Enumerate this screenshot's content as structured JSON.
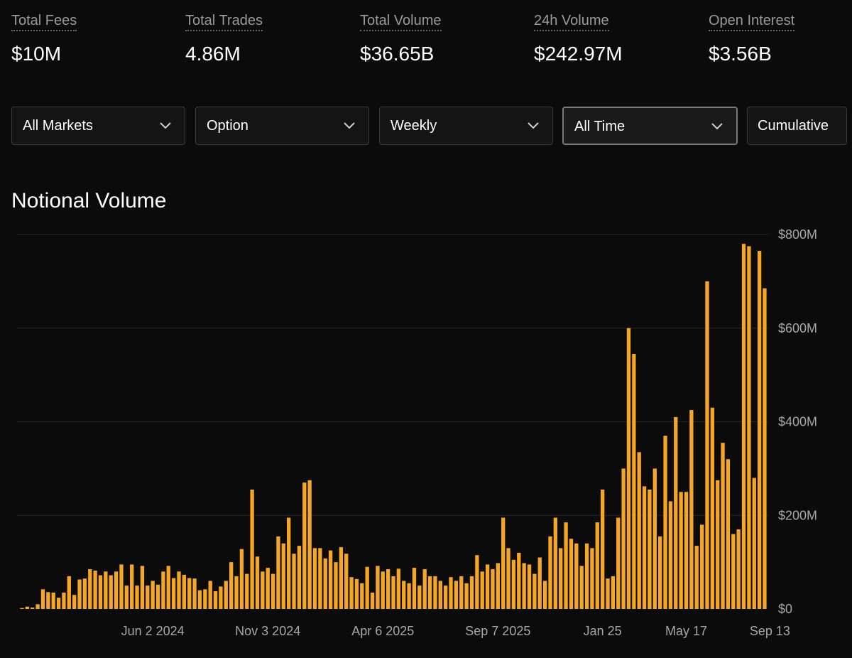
{
  "stats": [
    {
      "label": "Total Fees",
      "value": "$10M"
    },
    {
      "label": "Total Trades",
      "value": "4.86M"
    },
    {
      "label": "Total Volume",
      "value": "$36.65B"
    },
    {
      "label": "24h Volume",
      "value": "$242.97M"
    },
    {
      "label": "Open Interest",
      "value": "$3.56B"
    }
  ],
  "filters": {
    "market": "All Markets",
    "type": "Option",
    "interval": "Weekly",
    "range": "All Time",
    "mode": "Cumulative"
  },
  "colors": {
    "bar": "#f5a623",
    "background": "#0b0b0b",
    "grid": "#262626"
  },
  "chart_data": {
    "type": "bar",
    "title": "Notional Volume",
    "ylim": [
      0,
      800
    ],
    "y_unit": "$M",
    "y_ticks": [
      0,
      200,
      400,
      600,
      800
    ],
    "y_tick_labels": [
      "$0",
      "$200M",
      "$400M",
      "$600M",
      "$800M"
    ],
    "x_tick_labels": [
      {
        "label": "Jun 2 2024",
        "index": 25
      },
      {
        "label": "Nov 3 2024",
        "index": 47
      },
      {
        "label": "Apr 6 2025",
        "index": 69
      },
      {
        "label": "Sep 7 2025",
        "index": 91
      },
      {
        "label": "Jan 25",
        "index": 111
      },
      {
        "label": "May 17",
        "index": 127
      },
      {
        "label": "Sep 13",
        "index": 143
      }
    ],
    "grid": true,
    "legend": "none",
    "values": [
      2,
      5,
      3,
      10,
      42,
      36,
      35,
      24,
      35,
      70,
      30,
      63,
      65,
      85,
      82,
      72,
      80,
      72,
      80,
      95,
      50,
      95,
      50,
      92,
      50,
      60,
      52,
      80,
      92,
      66,
      80,
      73,
      66,
      65,
      40,
      42,
      60,
      38,
      48,
      60,
      100,
      70,
      128,
      75,
      255,
      112,
      80,
      88,
      75,
      155,
      140,
      195,
      118,
      135,
      270,
      275,
      130,
      130,
      108,
      125,
      100,
      132,
      118,
      68,
      64,
      55,
      90,
      35,
      92,
      80,
      85,
      70,
      86,
      60,
      55,
      88,
      50,
      85,
      70,
      70,
      60,
      50,
      68,
      60,
      70,
      55,
      70,
      115,
      80,
      95,
      85,
      98,
      195,
      130,
      105,
      120,
      98,
      95,
      75,
      110,
      60,
      155,
      195,
      130,
      185,
      150,
      140,
      92,
      140,
      130,
      185,
      255,
      65,
      70,
      195,
      300,
      600,
      545,
      335,
      262,
      255,
      300,
      155,
      370,
      230,
      410,
      250,
      250,
      425,
      135,
      180,
      700,
      430,
      275,
      355,
      320,
      160,
      170,
      780,
      775,
      280,
      765,
      685
    ]
  }
}
